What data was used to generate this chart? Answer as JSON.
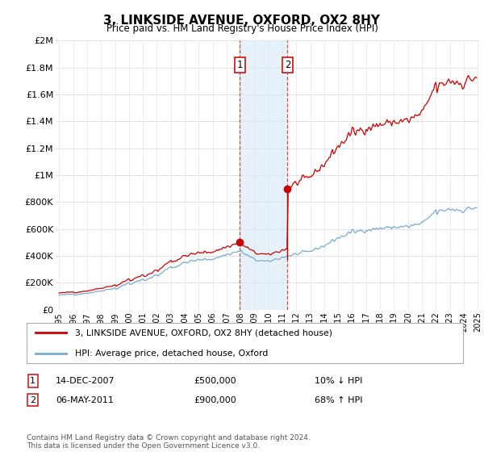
{
  "title": "3, LINKSIDE AVENUE, OXFORD, OX2 8HY",
  "subtitle": "Price paid vs. HM Land Registry's House Price Index (HPI)",
  "ylim": [
    0,
    2000000
  ],
  "yticks": [
    0,
    200000,
    400000,
    600000,
    800000,
    1000000,
    1200000,
    1400000,
    1600000,
    1800000,
    2000000
  ],
  "ytick_labels": [
    "£0",
    "£200K",
    "£400K",
    "£600K",
    "£800K",
    "£1M",
    "£1.2M",
    "£1.4M",
    "£1.6M",
    "£1.8M",
    "£2M"
  ],
  "x_start_year": 1995,
  "x_end_year": 2025,
  "purchase1_year": 2007.958,
  "purchase1_price": 500000,
  "purchase1_date": "14-DEC-2007",
  "purchase1_amount": "£500,000",
  "purchase1_hpi": "10% ↓ HPI",
  "purchase2_year": 2011.37,
  "purchase2_price": 900000,
  "purchase2_date": "06-MAY-2011",
  "purchase2_amount": "£900,000",
  "purchase2_hpi": "68% ↑ HPI",
  "red_line_color": "#cc0000",
  "blue_line_color": "#7aabcf",
  "shade_color": "#d6e9f5",
  "shade_alpha": 0.6,
  "grid_color": "#dddddd",
  "background_color": "#ffffff",
  "legend_label1": "3, LINKSIDE AVENUE, OXFORD, OX2 8HY (detached house)",
  "legend_label2": "HPI: Average price, detached house, Oxford",
  "footnote": "Contains HM Land Registry data © Crown copyright and database right 2024.\nThis data is licensed under the Open Government Licence v3.0."
}
